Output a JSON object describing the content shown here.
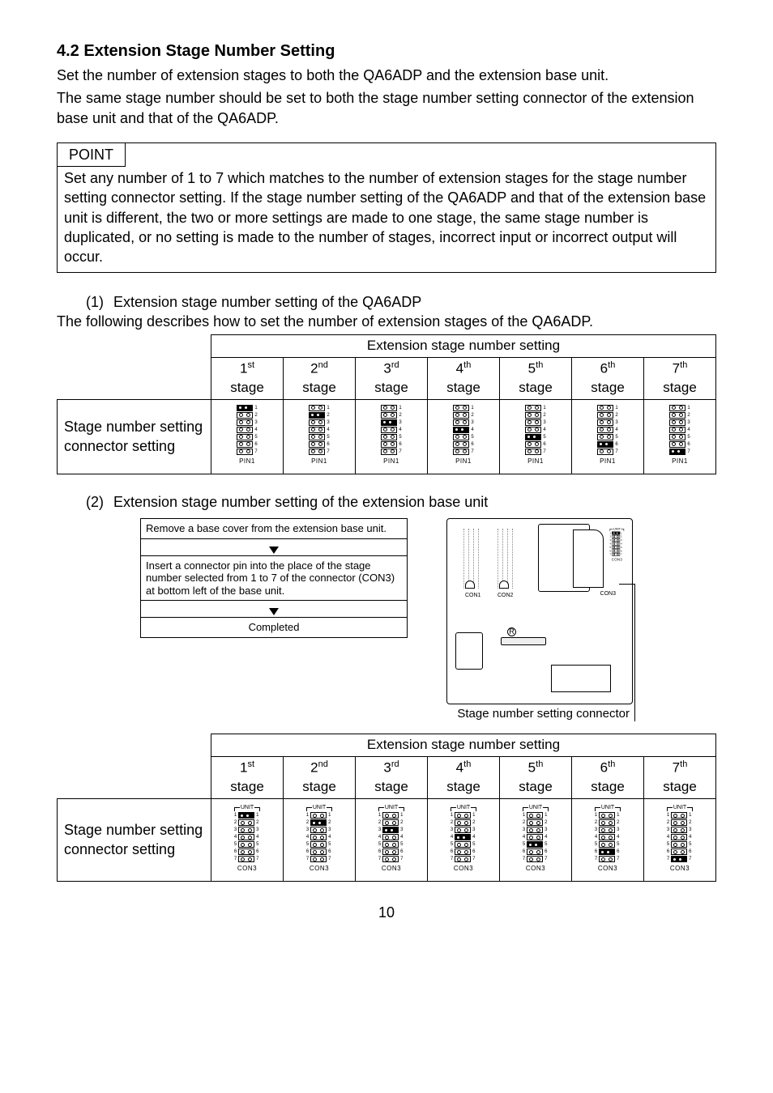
{
  "section_number": "4.2",
  "section_title": "Extension Stage Number Setting",
  "intro_paragraphs": [
    "Set the number of extension stages to both the QA6ADP and the extension base unit.",
    "The same stage number should be set to both the stage number setting connector of the extension base unit and that of the QA6ADP."
  ],
  "point": {
    "label": "POINT",
    "body": "Set any number of 1 to 7 which matches to the number of extension stages for the stage number setting connector setting. If the stage number setting of the QA6ADP and that of the extension base unit is different, the two or more settings are made to one stage, the same stage number is duplicated, or no setting is made to the number of stages, incorrect input or incorrect output will occur."
  },
  "items": [
    {
      "num": "(1)",
      "title": "Extension stage number setting of the QA6ADP",
      "desc": "The following describes how to set the number of extension stages of the QA6ADP."
    },
    {
      "num": "(2)",
      "title": "Extension stage number setting of the extension base unit",
      "desc": ""
    }
  ],
  "table": {
    "header_span": "Extension stage number setting",
    "row_label": "Stage number setting connector setting",
    "stage_ordinals": [
      "1",
      "2",
      "3",
      "4",
      "5",
      "6",
      "7"
    ],
    "stage_suffixes": [
      "st",
      "nd",
      "rd",
      "th",
      "th",
      "th",
      "th"
    ],
    "stage_word": "stage",
    "pin_label": "PIN1",
    "con_label": "CON3"
  },
  "flow": {
    "box1": "Remove a base cover from the extension base unit.",
    "box2": "Insert a connector pin into the place of the stage number selected from 1 to 7 of the connector (CON3) at bottom left of the base unit.",
    "box3": "Completed"
  },
  "unit_diagram": {
    "caption": "Stage number setting connector",
    "unit_label": "UNIT",
    "con1": "CON1",
    "con2": "CON2",
    "con3": "CON3"
  },
  "page_number": "10",
  "colors": {
    "text": "#000000",
    "bg": "#ffffff",
    "border": "#000000"
  }
}
